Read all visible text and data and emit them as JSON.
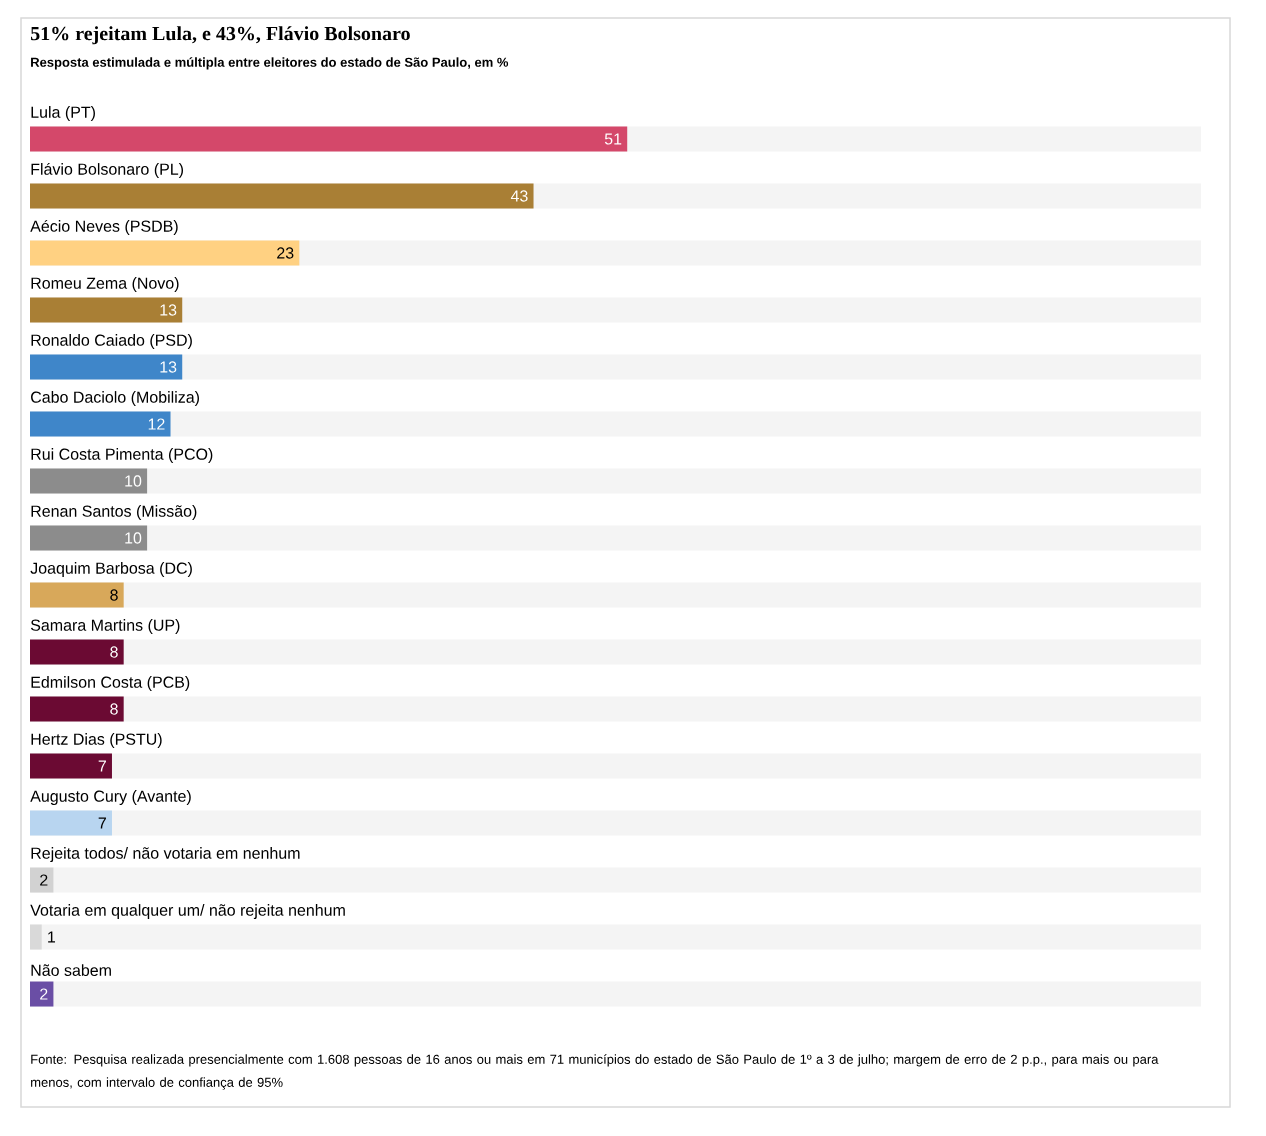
{
  "chart_data": {
    "type": "bar",
    "orientation": "horizontal",
    "title": "51% rejeitam Lula, e 43%, Flávio Bolsonaro",
    "subtitle": "Resposta estimulada e múltipla entre eleitores do estado de São Paulo, em %",
    "categories": [
      "Lula (PT)",
      "Flávio Bolsonaro (PL)",
      "Aécio Neves (PSDB)",
      "Romeu Zema (Novo)",
      "Ronaldo Caiado (PSD)",
      "Cabo Daciolo (Mobiliza)",
      "Rui Costa Pimenta (PCO)",
      "Renan Santos (Missão)",
      "Joaquim Barbosa (DC)",
      "Samara Martins (UP)",
      "Edmilson Costa (PCB)",
      "Hertz Dias (PSTU)",
      "Augusto Cury (Avante)",
      "Rejeita todos/ não votaria em nenhum",
      "Votaria em qualquer um/ não rejeita nenhum",
      "Não sabem"
    ],
    "values": [
      51,
      43,
      23,
      13,
      13,
      12,
      10,
      10,
      8,
      8,
      8,
      7,
      7,
      2,
      1,
      2
    ],
    "colors": [
      "#d4486a",
      "#a97f35",
      "#ffd182",
      "#a97f35",
      "#3f86c9",
      "#3f86c9",
      "#8c8c8c",
      "#8c8c8c",
      "#d8a85a",
      "#6b0a33",
      "#6b0a33",
      "#6b0a33",
      "#b8d5f0",
      "#d2d2d2",
      "#d9d9d9",
      "#6a4ea5"
    ],
    "xlim": [
      0,
      100
    ],
    "tick_labels": "y",
    "data_labels": true,
    "grid": false,
    "annotations": [
      "Fonte: Pesquisa realizada presencialmente com 1.608 pessoas de 16 anos ou mais em 71 municípios do estado de São Paulo de 1º a 3 de julho; margem de erro de 2 p.p., para mais ou para menos, com intervalo de confiança de 95%"
    ]
  }
}
